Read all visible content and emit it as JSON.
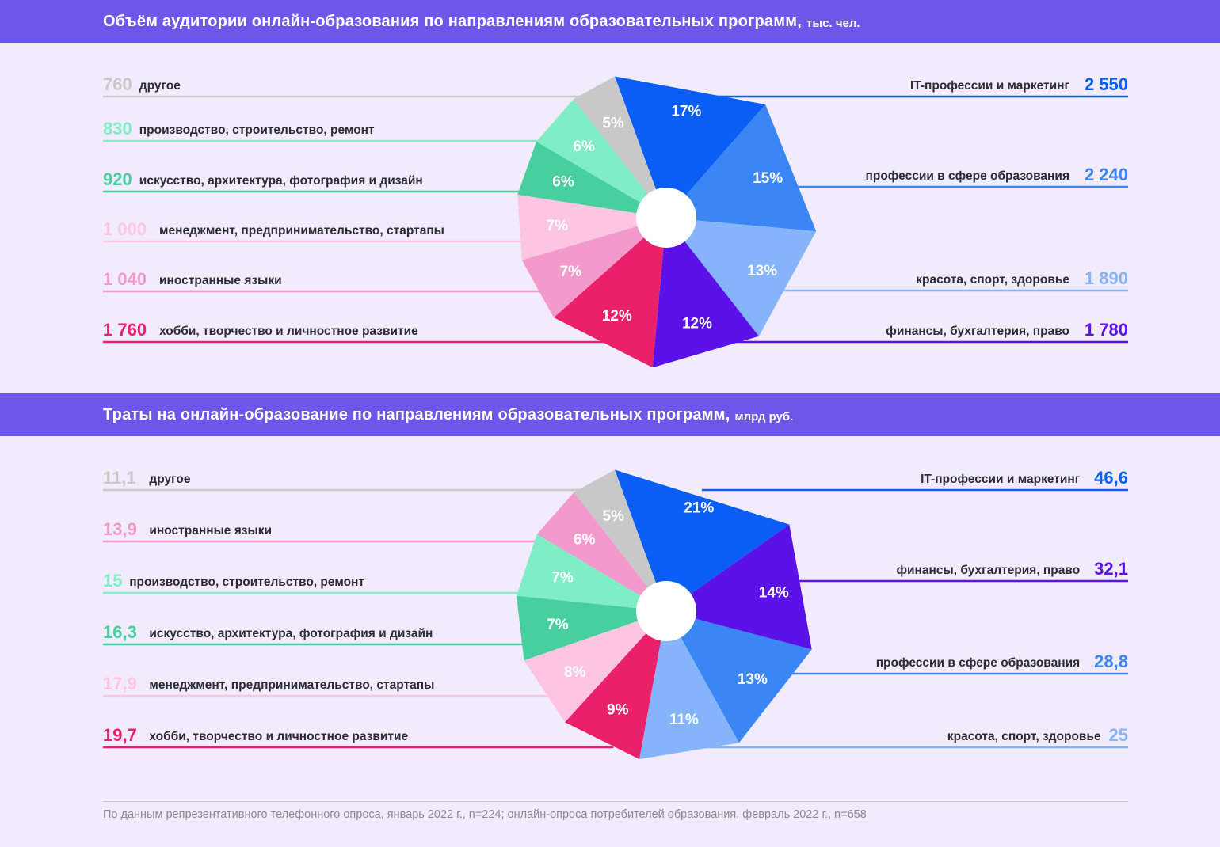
{
  "chart_data": [
    {
      "type": "pie",
      "title": "Объём аудитории онлайн-образования по направлениям образовательных программ,",
      "unit": "тыс. чел.",
      "slices": [
        {
          "label": "IT-профессии и маркетинг",
          "value": "2 550",
          "percent": 17,
          "pct_label": "17%",
          "color": "#0a5ef5",
          "side": "right"
        },
        {
          "label": "профессии в сфере образования",
          "value": "2 240",
          "percent": 15,
          "pct_label": "15%",
          "color": "#3a86f4",
          "side": "right"
        },
        {
          "label": "красота, спорт, здоровье",
          "value": "1 890",
          "percent": 13,
          "pct_label": "13%",
          "color": "#86b4fb",
          "side": "right"
        },
        {
          "label": "финансы, бухгалтерия, право",
          "value": "1 780",
          "percent": 12,
          "pct_label": "12%",
          "color": "#5a12e8",
          "side": "right"
        },
        {
          "label": "хобби, творчество и личностное развитие",
          "value": "1 760",
          "percent": 12,
          "pct_label": "12%",
          "color": "#e9216a",
          "side": "left"
        },
        {
          "label": "иностранные языки",
          "value": "1 040",
          "percent": 7,
          "pct_label": "7%",
          "color": "#f29acb",
          "side": "left"
        },
        {
          "label": "менеджмент, предпринимательство, стартапы",
          "value": "1 000",
          "percent": 7,
          "pct_label": "7%",
          "color": "#fcc6e3",
          "side": "left"
        },
        {
          "label": "искусство, архитектура, фотография и дизайн",
          "value": "920",
          "percent": 6,
          "pct_label": "6%",
          "color": "#47cf9d",
          "side": "left"
        },
        {
          "label": "производство, строительство, ремонт",
          "value": "830",
          "percent": 6,
          "pct_label": "6%",
          "color": "#7feec4",
          "side": "left"
        },
        {
          "label": "другое",
          "value": "760",
          "percent": 5,
          "pct_label": "5%",
          "color": "#c8c8c8",
          "side": "left"
        }
      ]
    },
    {
      "type": "pie",
      "title": "Траты на онлайн-образование по направлениям образовательных программ,",
      "unit": "млрд руб.",
      "slices": [
        {
          "label": "IT-профессии и маркетинг",
          "value": "46,6",
          "percent": 21,
          "pct_label": "21%",
          "color": "#0a5ef5",
          "side": "right"
        },
        {
          "label": "финансы, бухгалтерия, право",
          "value": "32,1",
          "percent": 14,
          "pct_label": "14%",
          "color": "#5a12e8",
          "side": "right"
        },
        {
          "label": "профессии в сфере образования",
          "value": "28,8",
          "percent": 13,
          "pct_label": "13%",
          "color": "#3a86f4",
          "side": "right"
        },
        {
          "label": "красота, спорт, здоровье",
          "value": "25",
          "percent": 11,
          "pct_label": "11%",
          "color": "#86b4fb",
          "side": "right"
        },
        {
          "label": "хобби, творчество и личностное развитие",
          "value": "19,7",
          "percent": 9,
          "pct_label": "9%",
          "color": "#e9216a",
          "side": "left"
        },
        {
          "label": "менеджмент, предпринимательство, стартапы",
          "value": "17,9",
          "percent": 8,
          "pct_label": "8%",
          "color": "#fcc6e3",
          "side": "left"
        },
        {
          "label": "искусство, архитектура, фотография и дизайн",
          "value": "16,3",
          "percent": 7,
          "pct_label": "7%",
          "color": "#47cf9d",
          "side": "left"
        },
        {
          "label": "производство, строительство, ремонт",
          "value": "15",
          "percent": 7,
          "pct_label": "7%",
          "color": "#7feec4",
          "side": "left"
        },
        {
          "label": "иностранные языки",
          "value": "13,9",
          "percent": 6,
          "pct_label": "6%",
          "color": "#f29acb",
          "side": "left"
        },
        {
          "label": "другое",
          "value": "11,1",
          "percent": 5,
          "pct_label": "5%",
          "color": "#c8c8c8",
          "side": "left"
        }
      ]
    }
  ],
  "footnote": "По данным репрезентативного телефонного опроса, январь 2022 г., n=224; онлайн-опроса потребителей образования, февраль 2022 г., n=658"
}
